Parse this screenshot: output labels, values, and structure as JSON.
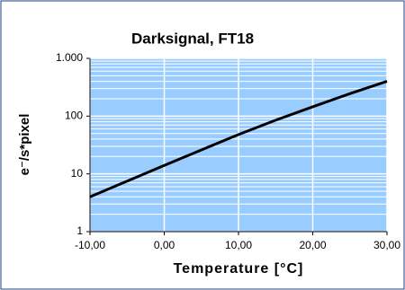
{
  "chart_data": {
    "type": "line",
    "title": "Darksignal, FT18",
    "x_label": "Temperature [°C]",
    "y_label": "e⁻/s*pixel",
    "x": [
      -10,
      -5,
      0,
      5,
      10,
      15,
      20,
      25,
      30
    ],
    "series": [
      {
        "name": "Darksignal",
        "color": "#000000",
        "values": [
          4,
          7.5,
          14,
          26,
          48,
          85,
          145,
          245,
          400
        ]
      }
    ],
    "xlim": [
      -10,
      30
    ],
    "xticks": [
      {
        "value": -10,
        "label": "-10,00"
      },
      {
        "value": 0,
        "label": "0,00"
      },
      {
        "value": 10,
        "label": "10,00"
      },
      {
        "value": 20,
        "label": "20,00"
      },
      {
        "value": 30,
        "label": "30,00"
      }
    ],
    "ylim": [
      1,
      1000
    ],
    "yticks": [
      1,
      10,
      100,
      {
        "value": 1000,
        "label": "1.000"
      }
    ],
    "y_log": true,
    "grid": true,
    "minor_grid": true,
    "plot_background": "#99ccff",
    "legend": false
  }
}
